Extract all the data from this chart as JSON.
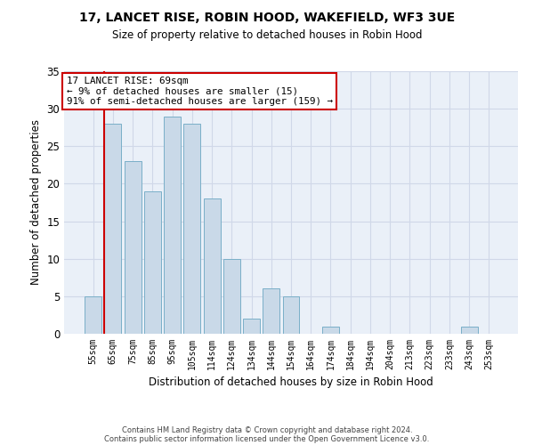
{
  "title1": "17, LANCET RISE, ROBIN HOOD, WAKEFIELD, WF3 3UE",
  "title2": "Size of property relative to detached houses in Robin Hood",
  "xlabel": "Distribution of detached houses by size in Robin Hood",
  "ylabel": "Number of detached properties",
  "categories": [
    "55sqm",
    "65sqm",
    "75sqm",
    "85sqm",
    "95sqm",
    "105sqm",
    "114sqm",
    "124sqm",
    "134sqm",
    "144sqm",
    "154sqm",
    "164sqm",
    "174sqm",
    "184sqm",
    "194sqm",
    "204sqm",
    "213sqm",
    "223sqm",
    "233sqm",
    "243sqm",
    "253sqm"
  ],
  "values": [
    5,
    28,
    23,
    19,
    29,
    28,
    18,
    10,
    2,
    6,
    5,
    0,
    1,
    0,
    0,
    0,
    0,
    0,
    0,
    1,
    0
  ],
  "bar_color": "#c9d9e8",
  "bar_edge_color": "#7aafc8",
  "grid_color": "#d0d8e8",
  "background_color": "#eaf0f8",
  "vline_x": 1,
  "vline_color": "#cc0000",
  "annotation_text": "17 LANCET RISE: 69sqm\n← 9% of detached houses are smaller (15)\n91% of semi-detached houses are larger (159) →",
  "annotation_box_color": "#ffffff",
  "annotation_box_edge": "#cc0000",
  "ylim": [
    0,
    35
  ],
  "yticks": [
    0,
    5,
    10,
    15,
    20,
    25,
    30,
    35
  ],
  "footer1": "Contains HM Land Registry data © Crown copyright and database right 2024.",
  "footer2": "Contains public sector information licensed under the Open Government Licence v3.0."
}
